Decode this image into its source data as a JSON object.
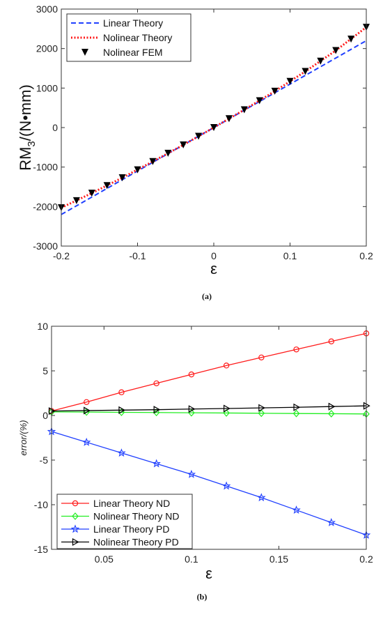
{
  "chart_data": [
    {
      "type": "line",
      "caption": "(a)",
      "xlabel": "ε",
      "ylabel_main": "RM",
      "ylabel_sub": "3",
      "ylabel_tail": "/(N•mm)",
      "xlim": [
        -0.2,
        0.2
      ],
      "ylim": [
        -3000,
        3000
      ],
      "xticks": [
        -0.2,
        -0.1,
        0,
        0.1,
        0.2
      ],
      "xtick_labels": [
        "-0.2",
        "-0.1",
        "0",
        "0.1",
        "0.2"
      ],
      "yticks": [
        -3000,
        -2000,
        -1000,
        0,
        1000,
        2000,
        3000
      ],
      "ytick_labels": [
        "-3000",
        "-2000",
        "-1000",
        "0",
        "1000",
        "2000",
        "3000"
      ],
      "legend_position": "top-left",
      "series": [
        {
          "name": "Linear Theory",
          "style": "dashed",
          "color": "#1f3fff",
          "x": [
            -0.2,
            0.2
          ],
          "y": [
            -2200,
            2200
          ]
        },
        {
          "name": "Nolinear Theory",
          "style": "dotted",
          "color": "#ff1a1a",
          "x": [
            -0.2,
            -0.16,
            -0.12,
            -0.08,
            -0.04,
            0,
            0.04,
            0.08,
            0.12,
            0.16,
            0.2
          ],
          "y": [
            -2030,
            -1660,
            -1270,
            -860,
            -440,
            0,
            450,
            920,
            1420,
            1950,
            2540
          ]
        },
        {
          "name": "Nolinear FEM",
          "style": "markers",
          "color": "#000000",
          "marker": "triangle-down",
          "x": [
            -0.2,
            -0.18,
            -0.16,
            -0.14,
            -0.12,
            -0.1,
            -0.08,
            -0.06,
            -0.04,
            -0.02,
            0,
            0.02,
            0.04,
            0.06,
            0.08,
            0.1,
            0.12,
            0.14,
            0.16,
            0.18,
            0.2
          ],
          "y": [
            -2030,
            -1850,
            -1660,
            -1470,
            -1270,
            -1070,
            -860,
            -650,
            -440,
            -220,
            0,
            225,
            450,
            680,
            920,
            1170,
            1420,
            1680,
            1950,
            2240,
            2540
          ]
        }
      ]
    },
    {
      "type": "line",
      "caption": "(b)",
      "xlabel": "ε",
      "ylabel": "error/(%)",
      "xlim": [
        0.02,
        0.2
      ],
      "ylim": [
        -15,
        10
      ],
      "xticks": [
        0.05,
        0.1,
        0.15,
        0.2
      ],
      "xtick_labels": [
        "0.05",
        "0.1",
        "0.15",
        "0.2"
      ],
      "yticks": [
        -15,
        -10,
        -5,
        0,
        5,
        10
      ],
      "ytick_labels": [
        "-15",
        "-10",
        "-5",
        "0",
        "5",
        "10"
      ],
      "legend_position": "bottom-left",
      "series": [
        {
          "name": "Linear Theory ND",
          "color": "#ff1a1a",
          "marker": "circle",
          "x": [
            0.02,
            0.04,
            0.06,
            0.08,
            0.1,
            0.12,
            0.14,
            0.16,
            0.18,
            0.2
          ],
          "y": [
            0.5,
            1.5,
            2.6,
            3.6,
            4.6,
            5.6,
            6.5,
            7.4,
            8.3,
            9.2
          ]
        },
        {
          "name": "Nolinear Theory ND",
          "color": "#22ee22",
          "marker": "diamond",
          "x": [
            0.02,
            0.04,
            0.06,
            0.08,
            0.1,
            0.12,
            0.14,
            0.16,
            0.18,
            0.2
          ],
          "y": [
            0.4,
            0.38,
            0.35,
            0.33,
            0.3,
            0.28,
            0.25,
            0.22,
            0.2,
            0.17
          ]
        },
        {
          "name": "Linear Theory PD",
          "color": "#1f3fff",
          "marker": "star",
          "x": [
            0.02,
            0.04,
            0.06,
            0.08,
            0.1,
            0.12,
            0.14,
            0.16,
            0.18,
            0.2
          ],
          "y": [
            -1.8,
            -3.0,
            -4.2,
            -5.4,
            -6.6,
            -7.9,
            -9.2,
            -10.6,
            -12.0,
            -13.4
          ]
        },
        {
          "name": "Nolinear Theory PD",
          "color": "#000000",
          "marker": "triangle-right",
          "x": [
            0.02,
            0.04,
            0.06,
            0.08,
            0.1,
            0.12,
            0.14,
            0.16,
            0.18,
            0.2
          ],
          "y": [
            0.5,
            0.55,
            0.6,
            0.65,
            0.72,
            0.78,
            0.85,
            0.92,
            1.0,
            1.08
          ]
        }
      ]
    }
  ]
}
